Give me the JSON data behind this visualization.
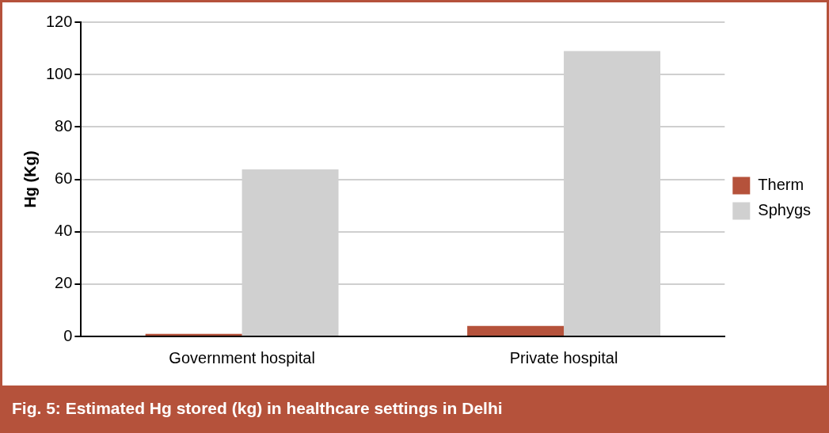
{
  "chart_data": {
    "type": "bar",
    "title": "Fig. 5: Estimated Hg stored (kg) in healthcare settings in Delhi",
    "ylabel": "Hg (Kg)",
    "categories": [
      "Government hospital",
      "Private hospital"
    ],
    "series": [
      {
        "name": "Therm",
        "color": "#b5523b",
        "values": [
          1,
          4
        ]
      },
      {
        "name": "Sphygs",
        "color": "#d0d0d0",
        "values": [
          63.8,
          109
        ]
      }
    ],
    "ylim": [
      0,
      120
    ],
    "yticks": [
      0,
      20,
      40,
      60,
      80,
      100,
      120
    ],
    "grid": "y",
    "legend": "right"
  }
}
